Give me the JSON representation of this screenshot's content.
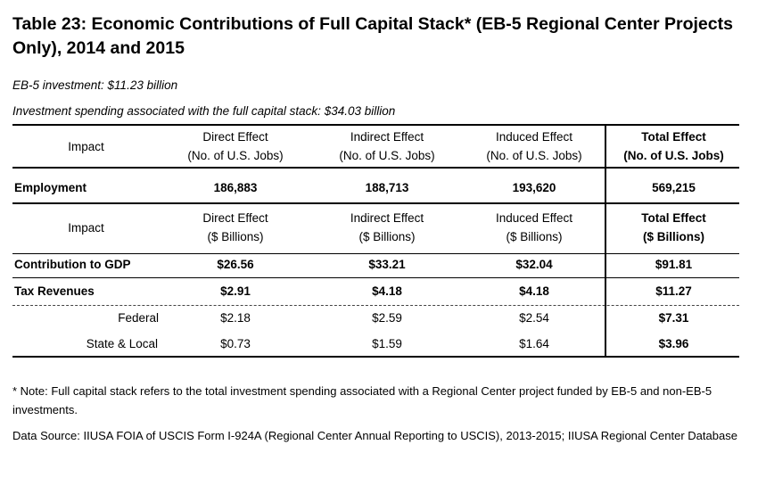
{
  "title": "Table 23: Economic Contributions of Full Capital Stack* (EB-5 Regional Center Projects Only), 2014 and 2015",
  "eb5_investment": "EB-5 investment: $11.23 billion",
  "capital_stack_spending": "Investment spending associated with the full capital stack: $34.03 billion",
  "jobs_header": {
    "impact": "Impact",
    "direct": [
      "Direct Effect",
      "(No. of U.S. Jobs)"
    ],
    "indirect": [
      "Indirect Effect",
      "(No. of U.S. Jobs)"
    ],
    "induced": [
      "Induced Effect",
      "(No. of U.S. Jobs)"
    ],
    "total": [
      "Total Effect",
      "(No. of U.S. Jobs)"
    ]
  },
  "employment": {
    "label": "Employment",
    "direct": "186,883",
    "indirect": "188,713",
    "induced": "193,620",
    "total": "569,215"
  },
  "dollar_header": {
    "impact": "Impact",
    "direct": [
      "Direct Effect",
      "($ Billions)"
    ],
    "indirect": [
      "Indirect Effect",
      "($ Billions)"
    ],
    "induced": [
      "Induced Effect",
      "($ Billions)"
    ],
    "total": [
      "Total Effect",
      "($ Billions)"
    ]
  },
  "gdp": {
    "label": "Contribution to GDP",
    "direct": "$26.56",
    "indirect": "$33.21",
    "induced": "$32.04",
    "total": "$91.81"
  },
  "tax": {
    "label": "Tax Revenues",
    "direct": "$2.91",
    "indirect": "$4.18",
    "induced": "$4.18",
    "total": "$11.27"
  },
  "federal": {
    "label": "Federal",
    "direct": "$2.18",
    "indirect": "$2.59",
    "induced": "$2.54",
    "total": "$7.31"
  },
  "state_local": {
    "label": "State & Local",
    "direct": "$0.73",
    "indirect": "$1.59",
    "induced": "$1.64",
    "total": "$3.96"
  },
  "note": "* Note: Full capital stack refers to the total investment spending associated with a Regional Center project funded by EB-5 and non-EB-5 investments.",
  "source": "Data Source: IIUSA FOIA of USCIS Form I-924A (Regional Center Annual Reporting to USCIS), 2013-2015; IIUSA Regional Center Database"
}
